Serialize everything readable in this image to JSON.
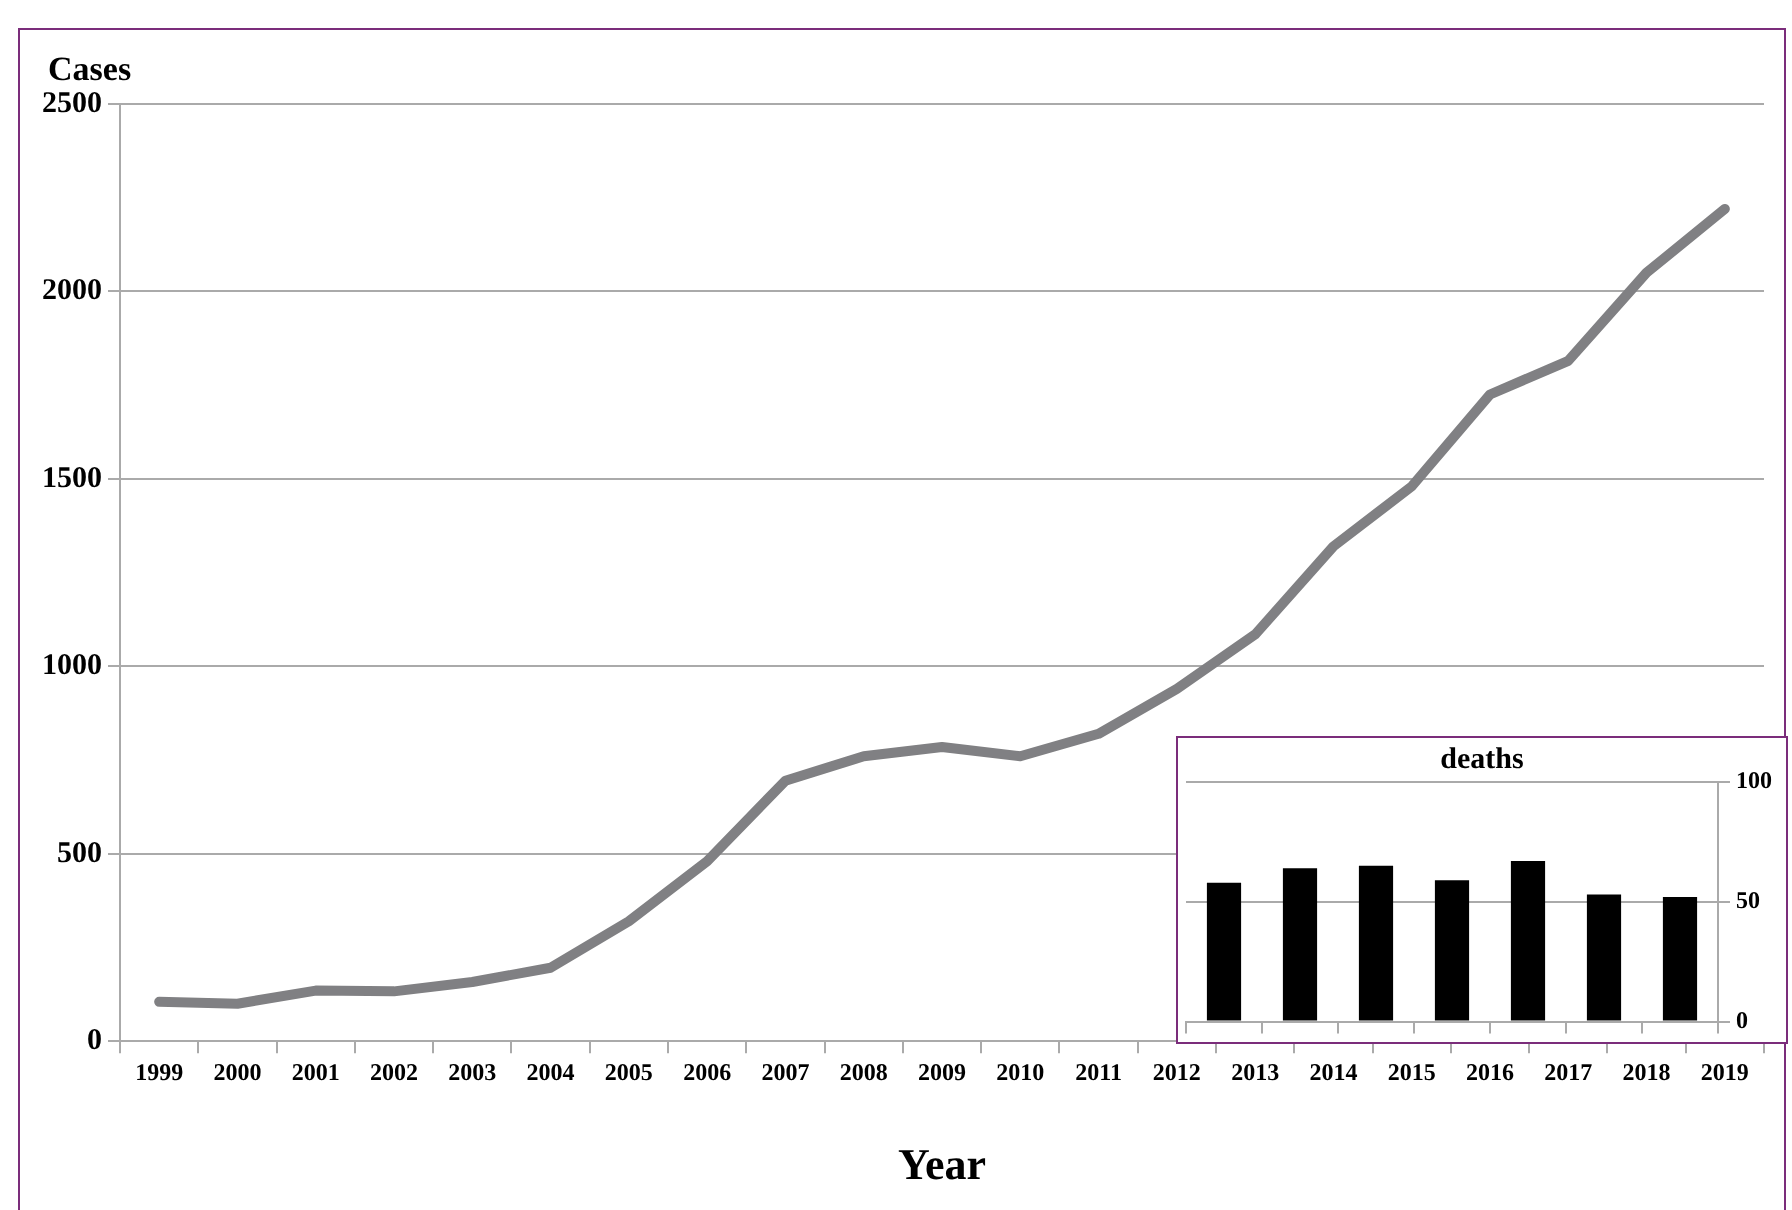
{
  "chart_data": [
    {
      "type": "line",
      "ylabel": "Cases",
      "xlabel": "Year",
      "categories": [
        "1999",
        "2000",
        "2001",
        "2002",
        "2003",
        "2004",
        "2005",
        "2006",
        "2007",
        "2008",
        "2009",
        "2010",
        "2011",
        "2012",
        "2013",
        "2014",
        "2015",
        "2016",
        "2017",
        "2018",
        "2019"
      ],
      "series": [
        {
          "color": "#808083",
          "values": [
            105,
            100,
            135,
            133,
            158,
            196,
            320,
            480,
            695,
            760,
            785,
            760,
            820,
            940,
            1085,
            1320,
            1480,
            1725,
            1815,
            2050,
            2220
          ]
        }
      ],
      "ylim": [
        0,
        2500
      ],
      "yticks": [
        0,
        500,
        1000,
        1500,
        2000,
        2500
      ],
      "grid": "y",
      "legend": false,
      "marker": "none",
      "line_style": "solid"
    },
    {
      "type": "bar",
      "title": "deaths",
      "categories": [
        null,
        null,
        null,
        null,
        null,
        null,
        null
      ],
      "series": [
        {
          "color": "#000000",
          "values": [
            58,
            64,
            65,
            59,
            67,
            53,
            52
          ]
        }
      ],
      "ylim": [
        0,
        100
      ],
      "yticks": [
        0,
        50,
        100
      ],
      "grid": "y",
      "legend": false,
      "tick_labels": "y"
    }
  ]
}
